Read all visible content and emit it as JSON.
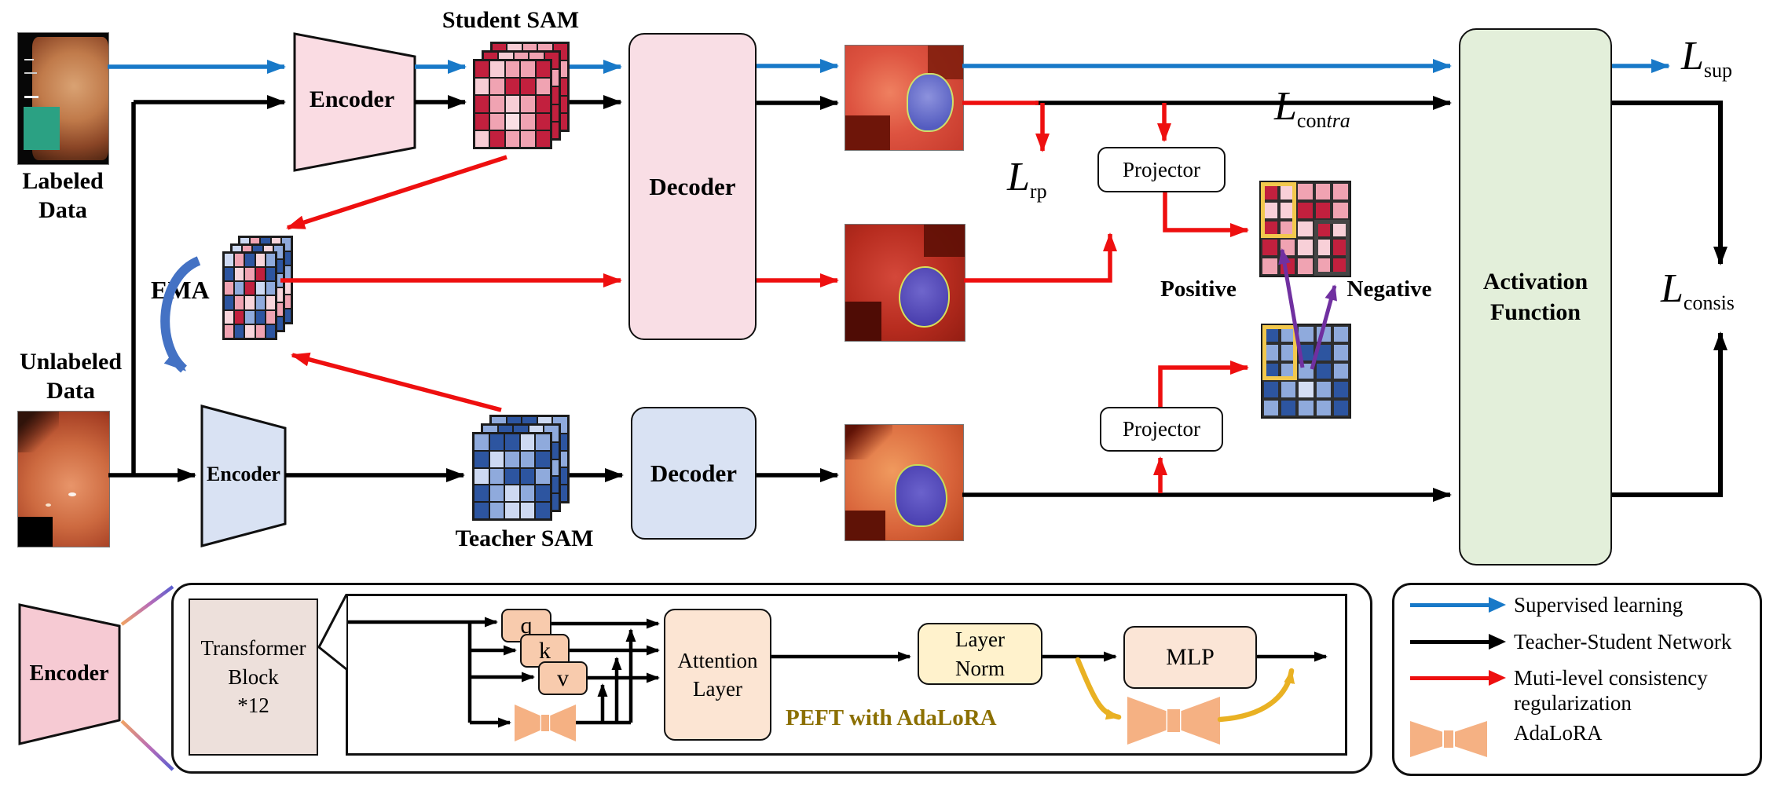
{
  "diagram": {
    "captions": {
      "labeled": "Labeled Data",
      "unlabeled": "Unlabeled Data",
      "student_sam": "Student SAM",
      "teacher_sam": "Teacher SAM",
      "ema": "EMA",
      "positive": "Positive",
      "negative": "Negative"
    },
    "boxes": {
      "encoder": "Encoder",
      "decoder": "Decoder",
      "projector": "Projector",
      "activation_lines": [
        "Activation",
        "Function"
      ]
    },
    "losses": {
      "sup": {
        "base": "L",
        "sub": "sup"
      },
      "rp": {
        "base": "L",
        "sub": "rp"
      },
      "consis": {
        "base": "L",
        "sub": "consis"
      },
      "contra": {
        "base": "L",
        "sub_roman": "con",
        "sub_italic": "tra"
      }
    }
  },
  "encoder_detail": {
    "transformer_lines": [
      "Transformer",
      "Block",
      "*12"
    ],
    "qkv": [
      "q",
      "k",
      "v"
    ],
    "attention_lines": [
      "Attention",
      "Layer"
    ],
    "layer_norm_lines": [
      "Layer",
      "Norm"
    ],
    "mlp": "MLP",
    "peft": "PEFT with AdaLoRA"
  },
  "legend": {
    "items": [
      {
        "swatch": "arrow",
        "color": "#1879c8",
        "label": "Supervised learning"
      },
      {
        "swatch": "arrow",
        "color": "#000000",
        "label": "Teacher-Student Network"
      },
      {
        "swatch": "arrow",
        "color": "#ee0f0f",
        "label": "Muti-level consistency regularization"
      },
      {
        "swatch": "bowtie",
        "color": "#f5b183",
        "label": "AdaLoRA"
      }
    ]
  },
  "grids": {
    "student": {
      "palette": {
        "d": "#c2203e",
        "m": "#f0a3b2",
        "l": "#f7cdd5",
        "x": "#fadfe4"
      },
      "rows": [
        [
          "d",
          "l",
          "m",
          "m",
          "d"
        ],
        [
          "l",
          "m",
          "d",
          "d",
          "m"
        ],
        [
          "d",
          "m",
          "l",
          "m",
          "d"
        ],
        [
          "d",
          "m",
          "x",
          "m",
          "d"
        ],
        [
          "l",
          "d",
          "m",
          "m",
          "d"
        ]
      ]
    },
    "teacher": {
      "palette": {
        "d": "#2d55a0",
        "m": "#8faadc",
        "l": "#cdd9f2"
      },
      "rows": [
        [
          "m",
          "d",
          "d",
          "l",
          "m"
        ],
        [
          "d",
          "l",
          "m",
          "m",
          "d"
        ],
        [
          "l",
          "m",
          "d",
          "d",
          "m"
        ],
        [
          "d",
          "m",
          "l",
          "m",
          "d"
        ],
        [
          "d",
          "m",
          "l",
          "l",
          "d"
        ]
      ]
    },
    "ema": {
      "palette": {
        "R": "#c2203e",
        "p": "#f0a3b2",
        "P": "#f8d5db",
        "B": "#2d55a0",
        "b": "#8faadc",
        "c": "#cdd9f2"
      },
      "rows": [
        [
          "c",
          "p",
          "B",
          "P",
          "b"
        ],
        [
          "B",
          "P",
          "p",
          "R",
          "B"
        ],
        [
          "p",
          "b",
          "R",
          "c",
          "b"
        ],
        [
          "B",
          "p",
          "P",
          "b",
          "P"
        ],
        [
          "P",
          "R",
          "b",
          "B",
          "p"
        ],
        [
          "p",
          "B",
          "P",
          "p",
          "B"
        ]
      ]
    },
    "contra_red": {
      "palette": {
        "d": "#c2203e",
        "m": "#f0a3b2",
        "l": "#f8d0d8"
      },
      "rows": [
        [
          "d",
          "l",
          "m",
          "m",
          "m"
        ],
        [
          "l",
          "l",
          "d",
          "d",
          "m"
        ],
        [
          "d",
          "m",
          "l",
          "d",
          "l"
        ],
        [
          "d",
          "m",
          "l",
          "l",
          "d"
        ],
        [
          "m",
          "d",
          "m",
          "m",
          "d"
        ]
      ],
      "highlights": [
        {
          "col": 0,
          "row": 0,
          "cols": 2,
          "rows": 3,
          "style": "yellow"
        },
        {
          "col": 3,
          "row": 2,
          "cols": 2,
          "rows": 3,
          "style": "dark"
        }
      ]
    },
    "contra_blue": {
      "palette": {
        "d": "#2d55a0",
        "m": "#8faadc",
        "l": "#d4def4"
      },
      "rows": [
        [
          "d",
          "m",
          "m",
          "m",
          "m"
        ],
        [
          "m",
          "m",
          "d",
          "d",
          "m"
        ],
        [
          "d",
          "m",
          "m",
          "d",
          "m"
        ],
        [
          "d",
          "m",
          "l",
          "m",
          "d"
        ],
        [
          "m",
          "d",
          "m",
          "m",
          "d"
        ]
      ],
      "highlights": [
        {
          "col": 0,
          "row": 0,
          "cols": 2,
          "rows": 3,
          "style": "yellow"
        }
      ]
    }
  },
  "colors": {
    "blue_arrow": "#1879c8",
    "black_arrow": "#000000",
    "red_arrow": "#ee0f0f",
    "purple_arrow": "#7030a0",
    "gold_arrow": "#e9b123",
    "ema_blue": "#4472c4",
    "encoder_pink": "#fadce3",
    "decoder_pink": "#f9dee5",
    "teacher_blue_fill": "#d9e2f3",
    "activation_green": "#e3efda",
    "qkv_peach": "#f8cbad",
    "attention_fill": "#fce5d3",
    "layernorm_fill": "#fff2cc",
    "mlp_fill": "#fbe5d6",
    "transformer_fill": "#ede0db",
    "bowtie_fill": "#f5b183",
    "highlight_yellow": "#f2c84d",
    "highlight_dark": "#454545",
    "peft_text": "#8b6f00"
  }
}
